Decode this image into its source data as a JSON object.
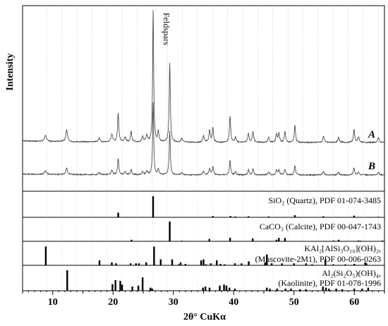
{
  "chart_data": {
    "type": "line",
    "xlabel": "2θ° CuKα",
    "ylabel": "Intensity",
    "xlim": [
      5,
      65
    ],
    "x_ticks": [
      10,
      20,
      30,
      40,
      50,
      60
    ],
    "grid": "vertical dotted",
    "annotation": "Feldspars",
    "annotation_x": 27.9,
    "pattern_peaks": [
      {
        "x": 8.8,
        "h": 0.05,
        "w": 0.18
      },
      {
        "x": 12.3,
        "h": 0.09,
        "w": 0.16
      },
      {
        "x": 17.7,
        "h": 0.03,
        "w": 0.15
      },
      {
        "x": 19.8,
        "h": 0.06,
        "w": 0.16
      },
      {
        "x": 20.85,
        "h": 0.22,
        "w": 0.12
      },
      {
        "x": 22.0,
        "h": 0.04,
        "w": 0.15
      },
      {
        "x": 23.0,
        "h": 0.08,
        "w": 0.12
      },
      {
        "x": 24.9,
        "h": 0.04,
        "w": 0.15
      },
      {
        "x": 25.6,
        "h": 0.05,
        "w": 0.15
      },
      {
        "x": 26.65,
        "h": 1.0,
        "w": 0.1
      },
      {
        "x": 27.5,
        "h": 0.08,
        "w": 0.12
      },
      {
        "x": 29.4,
        "h": 0.6,
        "w": 0.11
      },
      {
        "x": 31.4,
        "h": 0.03,
        "w": 0.15
      },
      {
        "x": 35.0,
        "h": 0.05,
        "w": 0.15
      },
      {
        "x": 36.0,
        "h": 0.09,
        "w": 0.13
      },
      {
        "x": 36.55,
        "h": 0.11,
        "w": 0.12
      },
      {
        "x": 39.4,
        "h": 0.2,
        "w": 0.12
      },
      {
        "x": 40.3,
        "h": 0.04,
        "w": 0.13
      },
      {
        "x": 42.45,
        "h": 0.07,
        "w": 0.13
      },
      {
        "x": 43.2,
        "h": 0.08,
        "w": 0.13
      },
      {
        "x": 45.8,
        "h": 0.04,
        "w": 0.14
      },
      {
        "x": 47.1,
        "h": 0.06,
        "w": 0.13
      },
      {
        "x": 47.5,
        "h": 0.07,
        "w": 0.13
      },
      {
        "x": 48.5,
        "h": 0.08,
        "w": 0.13
      },
      {
        "x": 50.15,
        "h": 0.13,
        "w": 0.12
      },
      {
        "x": 54.9,
        "h": 0.05,
        "w": 0.14
      },
      {
        "x": 57.4,
        "h": 0.04,
        "w": 0.14
      },
      {
        "x": 59.95,
        "h": 0.1,
        "w": 0.12
      },
      {
        "x": 60.7,
        "h": 0.04,
        "w": 0.14
      },
      {
        "x": 64.0,
        "h": 0.04,
        "w": 0.14
      }
    ],
    "series": [
      {
        "name": "A",
        "scale": 1.0
      },
      {
        "name": "B",
        "scale": 0.55
      }
    ],
    "reference_patterns": [
      {
        "label": "SiO₂ (Quartz), PDF 01-074-3485",
        "sticks": [
          [
            20.86,
            0.22
          ],
          [
            26.64,
            1.0
          ],
          [
            36.54,
            0.06
          ],
          [
            39.46,
            0.06
          ],
          [
            40.29,
            0.04
          ],
          [
            42.45,
            0.05
          ],
          [
            45.8,
            0.04
          ],
          [
            50.14,
            0.1
          ],
          [
            54.87,
            0.05
          ],
          [
            59.96,
            0.08
          ],
          [
            64.0,
            0.03
          ]
        ]
      },
      {
        "label": "CaCO₃ (Calcite), PDF 00-047-1743",
        "sticks": [
          [
            23.06,
            0.08
          ],
          [
            29.4,
            1.0
          ],
          [
            31.4,
            0.03
          ],
          [
            35.97,
            0.12
          ],
          [
            39.4,
            0.18
          ],
          [
            43.15,
            0.15
          ],
          [
            47.1,
            0.08
          ],
          [
            47.49,
            0.17
          ],
          [
            48.5,
            0.17
          ],
          [
            56.55,
            0.04
          ],
          [
            57.4,
            0.08
          ],
          [
            60.67,
            0.04
          ],
          [
            61.0,
            0.03
          ],
          [
            64.65,
            0.04
          ]
        ]
      },
      {
        "label1": "KAl₂[AlSi₃O₁₀](OH)₂,",
        "label2": "(Muscovite-2M1), PDF 00-006-0263",
        "sticks": [
          [
            8.85,
            0.95
          ],
          [
            17.75,
            0.25
          ],
          [
            19.8,
            0.15
          ],
          [
            20.5,
            0.1
          ],
          [
            22.9,
            0.1
          ],
          [
            23.8,
            0.1
          ],
          [
            24.3,
            0.1
          ],
          [
            25.5,
            0.15
          ],
          [
            26.8,
            0.95
          ],
          [
            27.9,
            0.3
          ],
          [
            29.8,
            0.3
          ],
          [
            30.9,
            0.05
          ],
          [
            31.2,
            0.15
          ],
          [
            32.0,
            0.07
          ],
          [
            34.6,
            0.25
          ],
          [
            35.0,
            0.3
          ],
          [
            35.4,
            0.05
          ],
          [
            36.2,
            0.1
          ],
          [
            37.2,
            0.25
          ],
          [
            37.8,
            0.07
          ],
          [
            38.5,
            0.05
          ],
          [
            40.2,
            0.1
          ],
          [
            41.3,
            0.1
          ],
          [
            42.5,
            0.2
          ],
          [
            45.2,
            0.15
          ],
          [
            45.5,
            0.55
          ],
          [
            46.3,
            0.1
          ],
          [
            48.0,
            0.1
          ],
          [
            50.0,
            0.1
          ],
          [
            52.0,
            0.1
          ],
          [
            53.0,
            0.05
          ],
          [
            55.2,
            0.3
          ],
          [
            56.5,
            0.05
          ],
          [
            58.5,
            0.05
          ],
          [
            60.0,
            0.07
          ],
          [
            61.8,
            0.15
          ],
          [
            62.0,
            0.1
          ]
        ]
      },
      {
        "label1": "Al₂(Si₂O₅)(OH)₄,",
        "label2": "(Kaolinite), PDF 01-078-1996",
        "sticks": [
          [
            12.4,
            1.0
          ],
          [
            19.9,
            0.32
          ],
          [
            20.4,
            0.52
          ],
          [
            21.2,
            0.48
          ],
          [
            21.5,
            0.3
          ],
          [
            23.2,
            0.2
          ],
          [
            24.2,
            0.25
          ],
          [
            24.9,
            0.65
          ],
          [
            26.2,
            0.15
          ],
          [
            26.5,
            0.1
          ],
          [
            34.9,
            0.15
          ],
          [
            35.3,
            0.2
          ],
          [
            36.0,
            0.15
          ],
          [
            37.7,
            0.25
          ],
          [
            38.4,
            0.3
          ],
          [
            38.8,
            0.25
          ],
          [
            39.3,
            0.15
          ],
          [
            40.2,
            0.1
          ],
          [
            45.5,
            0.15
          ],
          [
            46.0,
            0.1
          ],
          [
            47.2,
            0.1
          ],
          [
            48.6,
            0.1
          ],
          [
            49.5,
            0.1
          ],
          [
            51.0,
            0.07
          ],
          [
            52.0,
            0.07
          ],
          [
            54.8,
            0.2
          ],
          [
            55.3,
            0.15
          ],
          [
            55.8,
            0.1
          ],
          [
            57.0,
            0.1
          ],
          [
            58.0,
            0.07
          ],
          [
            60.0,
            0.1
          ],
          [
            61.3,
            0.1
          ],
          [
            62.3,
            0.15
          ]
        ]
      }
    ]
  }
}
